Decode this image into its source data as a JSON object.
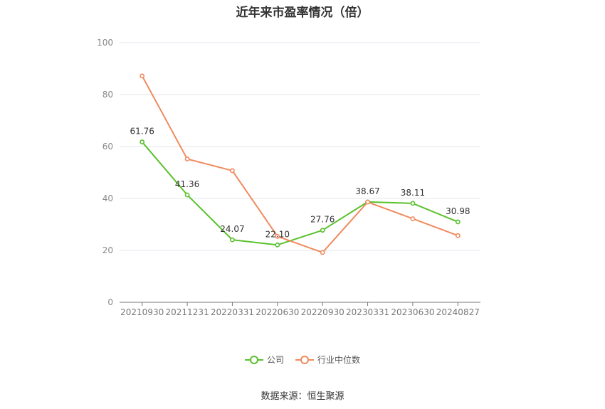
{
  "chart_data": {
    "type": "line",
    "title": "近年来市盈率情况（倍）",
    "categories": [
      "20210930",
      "20211231",
      "20220331",
      "20220630",
      "20220930",
      "20230331",
      "20230630",
      "20240827"
    ],
    "ylim": [
      0,
      100
    ],
    "yticks": [
      0,
      20,
      40,
      60,
      80,
      100
    ],
    "grid": true,
    "legend_position": "bottom",
    "series": [
      {
        "name": "公司",
        "color": "#5ac12c",
        "values": [
          61.76,
          41.36,
          24.07,
          22.1,
          27.76,
          38.67,
          38.11,
          30.98
        ],
        "labels": [
          "61.76",
          "41.36",
          "24.07",
          "22.10",
          "27.76",
          "38.67",
          "38.11",
          "30.98"
        ]
      },
      {
        "name": "行业中位数",
        "color": "#f08a5d",
        "values": [
          87.2,
          55.2,
          50.7,
          25.4,
          19.2,
          38.6,
          32.2,
          25.7
        ]
      }
    ]
  },
  "source": "数据来源：恒生聚源"
}
